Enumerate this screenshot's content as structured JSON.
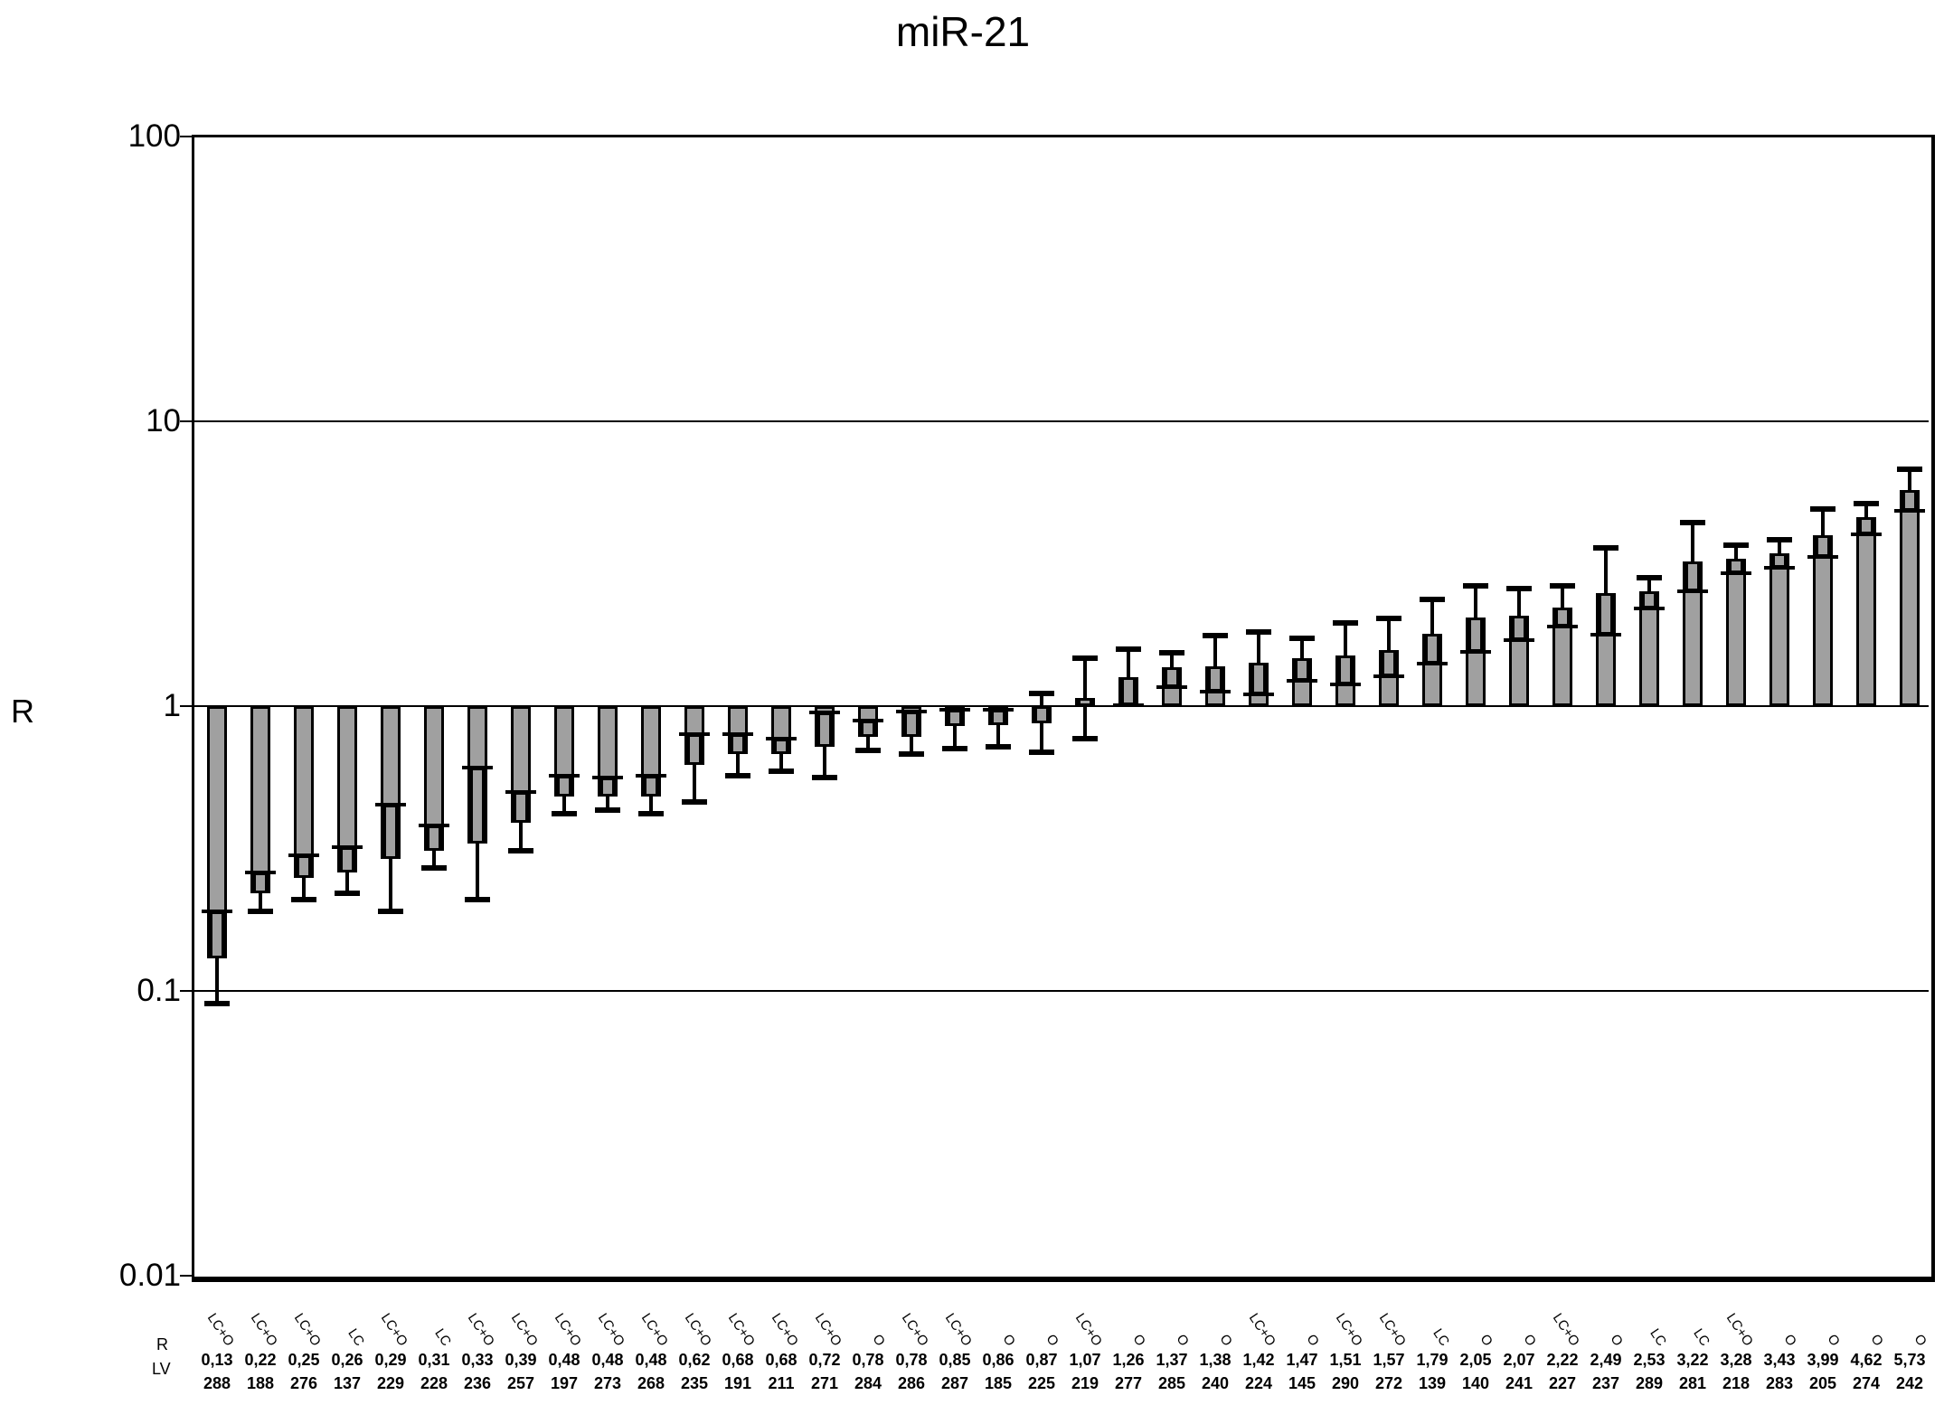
{
  "title": "miR-21",
  "y_axis": {
    "label": "R",
    "ticks": [
      {
        "label": "100",
        "value": 100
      },
      {
        "label": "10",
        "value": 10
      },
      {
        "label": "1",
        "value": 1
      },
      {
        "label": "0.1",
        "value": 0.1
      },
      {
        "label": "0.01",
        "value": 0.01
      }
    ]
  },
  "x_table": {
    "r_header": "R",
    "lv_header": "LV"
  },
  "chart_data": {
    "type": "bar",
    "title": "miR-21",
    "xlabel": "",
    "ylabel": "R",
    "y_scale": "log",
    "ylim": [
      0.01,
      100
    ],
    "baseline": 1,
    "gridlines": [
      10,
      1,
      0.1
    ],
    "grid": true,
    "legend_position": "none",
    "bar_color": "#a0a0a0",
    "error_bars": true,
    "categories": [
      "LC+O",
      "LC+O",
      "LC+O",
      "LC",
      "LC+O",
      "LC",
      "LC+O",
      "LC+O",
      "LC+O",
      "LC+O",
      "LC+O",
      "LC+O",
      "LC+O",
      "LC+O",
      "LC+O",
      "O",
      "LC+O",
      "LC+O",
      "O",
      "O",
      "LC+O",
      "O",
      "O",
      "O",
      "LC+O",
      "O",
      "LC+O",
      "LC+O",
      "LC",
      "O",
      "O",
      "LC+O",
      "O",
      "LC",
      "LC",
      "LC+O",
      "O",
      "O",
      "O",
      "O"
    ],
    "points": [
      {
        "group": "LC+O",
        "r_label": "0,13",
        "lv": "288",
        "r": 0.13,
        "lo": 0.09,
        "hi": 0.19
      },
      {
        "group": "LC+O",
        "r_label": "0,22",
        "lv": "188",
        "r": 0.22,
        "lo": 0.19,
        "hi": 0.26
      },
      {
        "group": "LC+O",
        "r_label": "0,25",
        "lv": "276",
        "r": 0.25,
        "lo": 0.21,
        "hi": 0.3
      },
      {
        "group": "LC",
        "r_label": "0,26",
        "lv": "137",
        "r": 0.26,
        "lo": 0.22,
        "hi": 0.32
      },
      {
        "group": "LC+O",
        "r_label": "0,29",
        "lv": "229",
        "r": 0.29,
        "lo": 0.19,
        "hi": 0.45
      },
      {
        "group": "LC",
        "r_label": "0,31",
        "lv": "228",
        "r": 0.31,
        "lo": 0.27,
        "hi": 0.38
      },
      {
        "group": "LC+O",
        "r_label": "0,33",
        "lv": "236",
        "r": 0.33,
        "lo": 0.21,
        "hi": 0.61
      },
      {
        "group": "LC+O",
        "r_label": "0,39",
        "lv": "257",
        "r": 0.39,
        "lo": 0.31,
        "hi": 0.5
      },
      {
        "group": "LC+O",
        "r_label": "0,48",
        "lv": "197",
        "r": 0.48,
        "lo": 0.42,
        "hi": 0.57
      },
      {
        "group": "LC+O",
        "r_label": "0,48",
        "lv": "273",
        "r": 0.48,
        "lo": 0.43,
        "hi": 0.56
      },
      {
        "group": "LC+O",
        "r_label": "0,48",
        "lv": "268",
        "r": 0.48,
        "lo": 0.42,
        "hi": 0.57
      },
      {
        "group": "LC+O",
        "r_label": "0,62",
        "lv": "235",
        "r": 0.62,
        "lo": 0.46,
        "hi": 0.8
      },
      {
        "group": "LC+O",
        "r_label": "0,68",
        "lv": "191",
        "r": 0.68,
        "lo": 0.57,
        "hi": 0.8
      },
      {
        "group": "LC+O",
        "r_label": "0,68",
        "lv": "211",
        "r": 0.68,
        "lo": 0.59,
        "hi": 0.77
      },
      {
        "group": "LC+O",
        "r_label": "0,72",
        "lv": "271",
        "r": 0.72,
        "lo": 0.56,
        "hi": 0.95
      },
      {
        "group": "O",
        "r_label": "0,78",
        "lv": "284",
        "r": 0.78,
        "lo": 0.7,
        "hi": 0.89
      },
      {
        "group": "LC+O",
        "r_label": "0,78",
        "lv": "286",
        "r": 0.78,
        "lo": 0.68,
        "hi": 0.96
      },
      {
        "group": "LC+O",
        "r_label": "0,85",
        "lv": "287",
        "r": 0.85,
        "lo": 0.71,
        "hi": 0.97
      },
      {
        "group": "O",
        "r_label": "0,86",
        "lv": "185",
        "r": 0.86,
        "lo": 0.72,
        "hi": 0.97
      },
      {
        "group": "O",
        "r_label": "0,87",
        "lv": "225",
        "r": 0.87,
        "lo": 0.69,
        "hi": 1.11
      },
      {
        "group": "LC+O",
        "r_label": "1,07",
        "lv": "219",
        "r": 1.07,
        "lo": 0.77,
        "hi": 1.47
      },
      {
        "group": "O",
        "r_label": "1,26",
        "lv": "277",
        "r": 1.26,
        "lo": 1.01,
        "hi": 1.59
      },
      {
        "group": "O",
        "r_label": "1,37",
        "lv": "285",
        "r": 1.37,
        "lo": 1.17,
        "hi": 1.54
      },
      {
        "group": "O",
        "r_label": "1,38",
        "lv": "240",
        "r": 1.38,
        "lo": 1.12,
        "hi": 1.77
      },
      {
        "group": "LC+O",
        "r_label": "1,42",
        "lv": "224",
        "r": 1.42,
        "lo": 1.1,
        "hi": 1.82
      },
      {
        "group": "O",
        "r_label": "1,47",
        "lv": "145",
        "r": 1.47,
        "lo": 1.23,
        "hi": 1.73
      },
      {
        "group": "LC+O",
        "r_label": "1,51",
        "lv": "290",
        "r": 1.51,
        "lo": 1.19,
        "hi": 1.96
      },
      {
        "group": "LC+O",
        "r_label": "1,57",
        "lv": "272",
        "r": 1.57,
        "lo": 1.27,
        "hi": 2.03
      },
      {
        "group": "LC",
        "r_label": "1,79",
        "lv": "139",
        "r": 1.79,
        "lo": 1.41,
        "hi": 2.37
      },
      {
        "group": "O",
        "r_label": "2,05",
        "lv": "140",
        "r": 2.05,
        "lo": 1.55,
        "hi": 2.64
      },
      {
        "group": "O",
        "r_label": "2,07",
        "lv": "241",
        "r": 2.07,
        "lo": 1.71,
        "hi": 2.59
      },
      {
        "group": "LC+O",
        "r_label": "2,22",
        "lv": "227",
        "r": 2.22,
        "lo": 1.9,
        "hi": 2.64
      },
      {
        "group": "O",
        "r_label": "2,49",
        "lv": "237",
        "r": 2.49,
        "lo": 1.78,
        "hi": 3.6
      },
      {
        "group": "LC",
        "r_label": "2,53",
        "lv": "289",
        "r": 2.53,
        "lo": 2.2,
        "hi": 2.82
      },
      {
        "group": "LC",
        "r_label": "3,22",
        "lv": "281",
        "r": 3.22,
        "lo": 2.53,
        "hi": 4.41
      },
      {
        "group": "LC+O",
        "r_label": "3,28",
        "lv": "218",
        "r": 3.28,
        "lo": 2.93,
        "hi": 3.67
      },
      {
        "group": "O",
        "r_label": "3,43",
        "lv": "283",
        "r": 3.43,
        "lo": 3.06,
        "hi": 3.84
      },
      {
        "group": "O",
        "r_label": "3,99",
        "lv": "205",
        "r": 3.99,
        "lo": 3.34,
        "hi": 4.92
      },
      {
        "group": "O",
        "r_label": "4,62",
        "lv": "274",
        "r": 4.62,
        "lo": 4.01,
        "hi": 5.14
      },
      {
        "group": "O",
        "r_label": "5,73",
        "lv": "242",
        "r": 5.73,
        "lo": 4.85,
        "hi": 6.79
      }
    ]
  }
}
